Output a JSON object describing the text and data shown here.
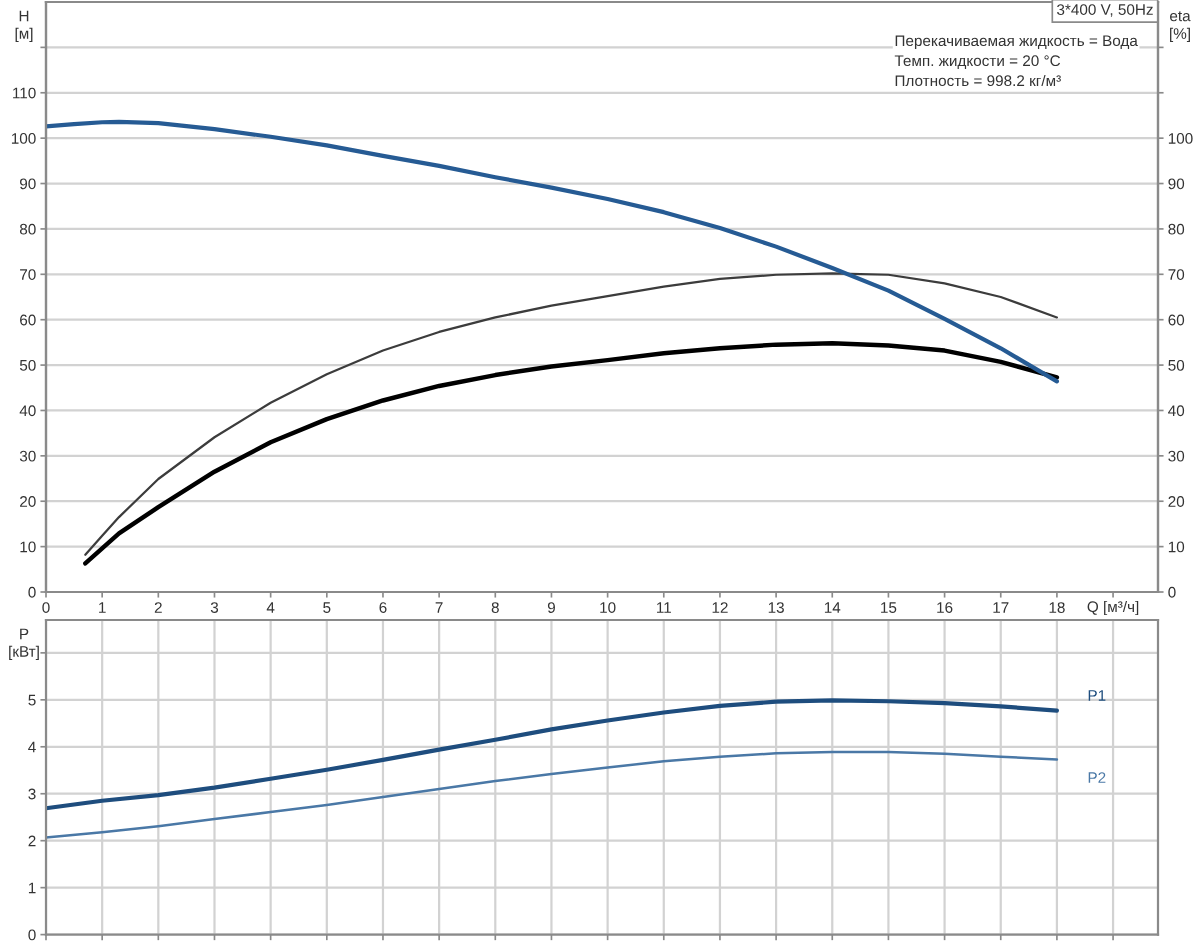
{
  "chart_data": [
    {
      "type": "line",
      "title": "3*400 V, 50Hz",
      "xlabel": "Q [м³/ч]",
      "ylabel": "H\n[м]",
      "y2label": "eta\n[%]",
      "annotations": [
        "Перекачиваемая жидкость = Вода",
        "Темп. жидкости = 20 °C",
        "Плотность = 998.2 кг/м³"
      ],
      "xlim": [
        0,
        19.8
      ],
      "xticks": [
        0,
        1,
        2,
        3,
        4,
        5,
        6,
        7,
        8,
        9,
        10,
        11,
        12,
        13,
        14,
        15,
        16,
        17,
        18,
        {
          "value": 19,
          "label": null
        }
      ],
      "ylim": [
        0,
        130
      ],
      "yticks": [
        0,
        10,
        20,
        30,
        40,
        50,
        60,
        70,
        80,
        90,
        100,
        110,
        {
          "value": 120,
          "label": null
        }
      ],
      "y2lim": [
        0,
        130
      ],
      "y2ticks": [
        0,
        10,
        20,
        30,
        40,
        50,
        60,
        70,
        80,
        90,
        100,
        {
          "value": 110,
          "label": null
        },
        {
          "value": 120,
          "label": null
        }
      ],
      "grid": true,
      "series": [
        {
          "color": "#265b94",
          "x": [
            0,
            0.5,
            1,
            1.3,
            2,
            3,
            4,
            5,
            6,
            7,
            8,
            9,
            10,
            11,
            12,
            13,
            14,
            15,
            16,
            17,
            18
          ],
          "values": [
            102.6,
            103.1,
            103.5,
            103.6,
            103.3,
            102,
            100.3,
            98.4,
            96.1,
            93.9,
            91.4,
            89.1,
            86.6,
            83.7,
            80.2,
            76.1,
            71.4,
            66.4,
            60.2,
            53.7,
            46.4
          ]
        },
        {
          "color": "#3c3c3c",
          "axis": "y2",
          "x": [
            0.7,
            1,
            1.3,
            2,
            3,
            4,
            5,
            6,
            7,
            8,
            9,
            10,
            11,
            12,
            13,
            14,
            15,
            16,
            17,
            18
          ],
          "values": [
            8.2,
            12.4,
            16.5,
            24.9,
            34.1,
            41.7,
            48,
            53.2,
            57.3,
            60.5,
            63.1,
            65.2,
            67.3,
            69,
            69.9,
            70.2,
            69.9,
            68,
            65,
            60.5
          ]
        },
        {
          "color": "#000000",
          "axis": "y2",
          "x": [
            0.7,
            1,
            1.3,
            2,
            3,
            4,
            5,
            6,
            7,
            8,
            9,
            10,
            11,
            12,
            13,
            14,
            15,
            16,
            17,
            18
          ],
          "values": [
            6.3,
            9.6,
            12.9,
            18.7,
            26.5,
            33,
            38.1,
            42.2,
            45.4,
            47.8,
            49.7,
            51.1,
            52.6,
            53.7,
            54.5,
            54.8,
            54.3,
            53.2,
            50.7,
            47.3
          ]
        }
      ]
    },
    {
      "type": "line",
      "ylabel": "P\n[кВт]",
      "xlim": [
        0,
        19.8
      ],
      "xticks": [
        0,
        1,
        2,
        3,
        4,
        5,
        6,
        7,
        8,
        9,
        10,
        11,
        12,
        13,
        14,
        15,
        16,
        17,
        18,
        {
          "value": 19,
          "label": null
        }
      ],
      "ylim": [
        0,
        6.7
      ],
      "yticks": [
        0,
        1,
        2,
        3,
        4,
        5,
        {
          "value": 6,
          "label": null
        }
      ],
      "tick_labels": "y",
      "grid": true,
      "x": [
        0,
        1,
        2,
        3,
        4,
        5,
        6,
        7,
        8,
        9,
        10,
        11,
        12,
        13,
        14,
        15,
        16,
        17,
        18
      ],
      "series": [
        {
          "name": "P1",
          "color": "#1e4d7e",
          "values": [
            2.69,
            2.85,
            2.97,
            3.13,
            3.32,
            3.51,
            3.72,
            3.94,
            4.15,
            4.37,
            4.56,
            4.73,
            4.87,
            4.96,
            4.99,
            4.97,
            4.93,
            4.86,
            4.77
          ]
        },
        {
          "name": "P2",
          "color": "#4a78a6",
          "values": [
            2.07,
            2.18,
            2.31,
            2.46,
            2.61,
            2.76,
            2.93,
            3.1,
            3.27,
            3.42,
            3.56,
            3.69,
            3.79,
            3.86,
            3.89,
            3.89,
            3.85,
            3.79,
            3.73
          ]
        }
      ]
    }
  ]
}
